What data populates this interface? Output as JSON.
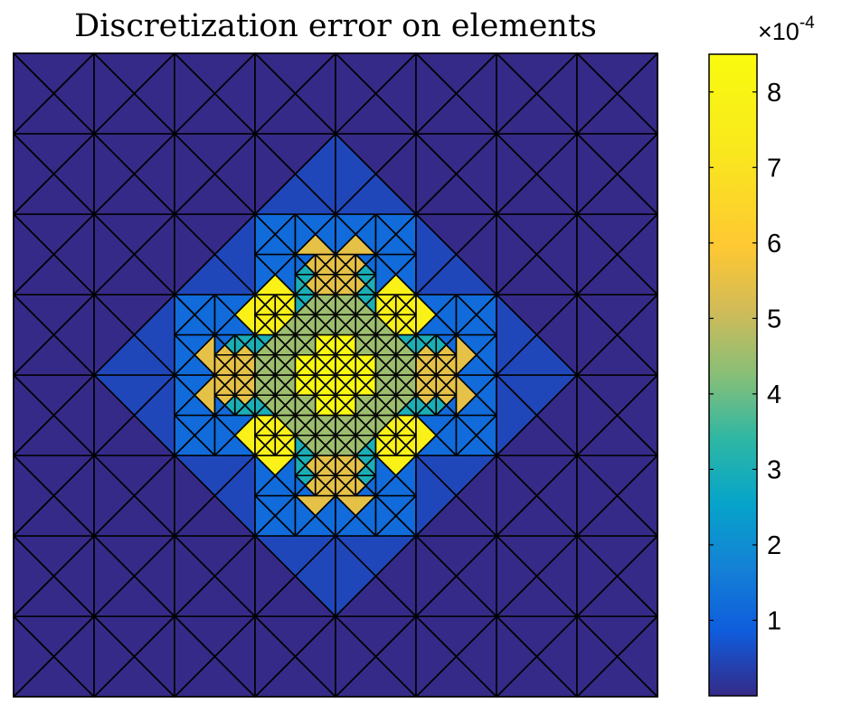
{
  "chart_data": {
    "type": "heatmap",
    "title": "Discretization error on elements",
    "domain": {
      "x": [
        0,
        8
      ],
      "y": [
        0,
        8
      ]
    },
    "mesh": "adaptively refined triangular mesh: 8x8 squares, each split by both diagonals into 4 triangles; central diamond refined twice",
    "colormap": "parula",
    "clim": [
      0,
      0.00085
    ],
    "colorbar": {
      "ticks": [
        1,
        2,
        3,
        4,
        5,
        6,
        7,
        8
      ],
      "tick_labels": [
        "1",
        "2",
        "3",
        "4",
        "5",
        "6",
        "7",
        "8"
      ],
      "multiplier_base": "×10",
      "multiplier_exponent": "-4"
    },
    "error_levels": [
      {
        "region": "outer coarse elements",
        "value": 0.0
      },
      {
        "region": "coarse elements bordering refinement",
        "value": 5e-05
      },
      {
        "region": "refined ring (outer)",
        "value": 0.00012
      },
      {
        "region": "refined ring (middle)",
        "value": 0.0003
      },
      {
        "region": "refined ring (inner)",
        "value": 0.00045
      },
      {
        "region": "diamond tips",
        "value": 0.00055
      },
      {
        "region": "off-diagonal hotspots",
        "value": 0.00078
      },
      {
        "region": "center",
        "value": 0.00083
      }
    ]
  }
}
